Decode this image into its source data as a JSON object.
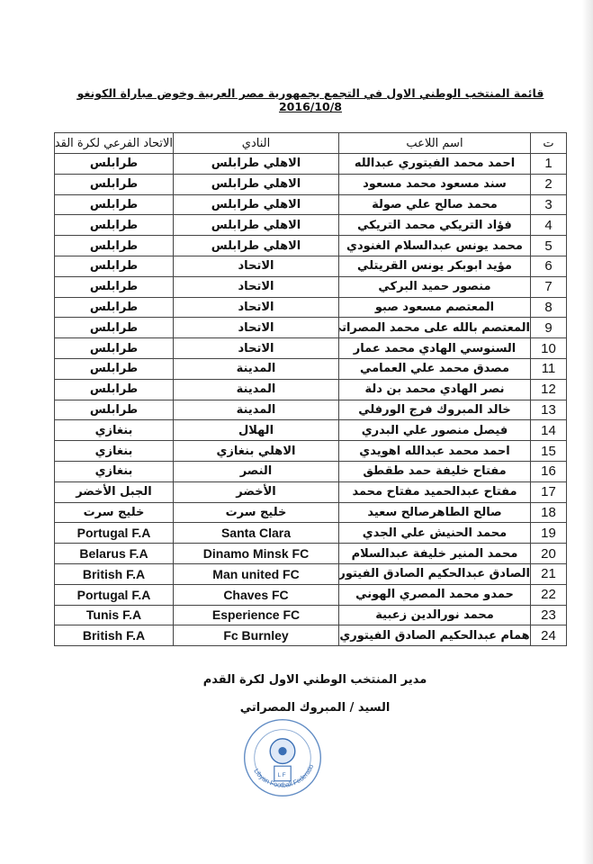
{
  "document": {
    "title": "قائمة المنتخب الوطني الاول في التجمع بجمهورية مصر العربية وخوض مباراة الكونغو 2016/10/8",
    "table": {
      "headers": [
        "ت",
        "اسم اللاعب",
        "النادي",
        "الاتحاد الفرعي لكرة القدم"
      ],
      "rows": [
        {
          "n": "1",
          "name": "احمد محمد الفيتوري عبدالله",
          "club": "الاهلي طرابلس",
          "fed": "طرابلس"
        },
        {
          "n": "2",
          "name": "سند مسعود محمد مسعود",
          "club": "الاهلي طرابلس",
          "fed": "طرابلس"
        },
        {
          "n": "3",
          "name": "محمد صالح علي صولة",
          "club": "الاهلي طرابلس",
          "fed": "طرابلس"
        },
        {
          "n": "4",
          "name": "فؤاد التريكي محمد التريكي",
          "club": "الاهلي طرابلس",
          "fed": "طرابلس"
        },
        {
          "n": "5",
          "name": "محمد يونس عبدالسلام الغنودي",
          "club": "الاهلي طرابلس",
          "fed": "طرابلس"
        },
        {
          "n": "6",
          "name": "مؤيد ابوبكر يونس القريتلي",
          "club": "الاتحاد",
          "fed": "طرابلس"
        },
        {
          "n": "7",
          "name": "منصور حميد البركي",
          "club": "الاتحاد",
          "fed": "طرابلس"
        },
        {
          "n": "8",
          "name": "المعتصم مسعود صبو",
          "club": "الاتحاد",
          "fed": "طرابلس"
        },
        {
          "n": "9",
          "name": "المعتصم بالله على محمد المصراتي",
          "club": "الاتحاد",
          "fed": "طرابلس"
        },
        {
          "n": "10",
          "name": "السنوسي الهادي محمد عمار",
          "club": "الاتحاد",
          "fed": "طرابلس"
        },
        {
          "n": "11",
          "name": "مصدق محمد علي العمامي",
          "club": "المدينة",
          "fed": "طرابلس"
        },
        {
          "n": "12",
          "name": "نصر الهادي محمد بن دلة",
          "club": "المدينة",
          "fed": "طرابلس"
        },
        {
          "n": "13",
          "name": "خالد المبروك فرج الورفلي",
          "club": "المدينة",
          "fed": "طرابلس"
        },
        {
          "n": "14",
          "name": "فيصل منصور علي البدري",
          "club": "الهلال",
          "fed": "بنغازي"
        },
        {
          "n": "15",
          "name": "احمد محمد عبدالله اهويدي",
          "club": "الاهلي بنغازي",
          "fed": "بنغازي"
        },
        {
          "n": "16",
          "name": "مفتاح خليفة حمد طقطق",
          "club": "النصر",
          "fed": "بنغازي"
        },
        {
          "n": "17",
          "name": "مفتاح عبدالحميد مفتاح محمد",
          "club": "الأخضر",
          "fed": "الجبل الأخضر"
        },
        {
          "n": "18",
          "name": "صالح الطاهرصالح سعيد",
          "club": "خليج سرت",
          "fed": "خليج سرت"
        },
        {
          "n": "19",
          "name": "محمد الحنيش علي الجدي",
          "club": "Santa Clara",
          "fed": "Portugal F.A"
        },
        {
          "n": "20",
          "name": "محمد المنير خليفة عبدالسلام",
          "club": "Dinamo Minsk FC",
          "fed": "Belarus F.A"
        },
        {
          "n": "21",
          "name": "الصادق عبدالحكيم الصادق الفيتوري",
          "club": "Man united FC",
          "fed": "British F.A"
        },
        {
          "n": "22",
          "name": "حمدو محمد المصري الهوني",
          "club": "Chaves FC",
          "fed": "Portugal F.A"
        },
        {
          "n": "23",
          "name": "محمد نورالدين زعبية",
          "club": "Esperience FC",
          "fed": "Tunis F.A"
        },
        {
          "n": "24",
          "name": "همام عبدالحكيم الصادق الفيتوري",
          "club": "Fc Burnley",
          "fed": "British F.A"
        }
      ]
    },
    "footer": {
      "position": "مدير المنتخب الوطني الاول لكرة القدم",
      "signatory": "السيد / المبروك المصراتي"
    },
    "seal": {
      "text_en": "Libyan Football Federation",
      "text_ar": "الاتحاد الليبي لكرة القدم",
      "initials": "L F",
      "color": "#3a6fb5"
    }
  }
}
